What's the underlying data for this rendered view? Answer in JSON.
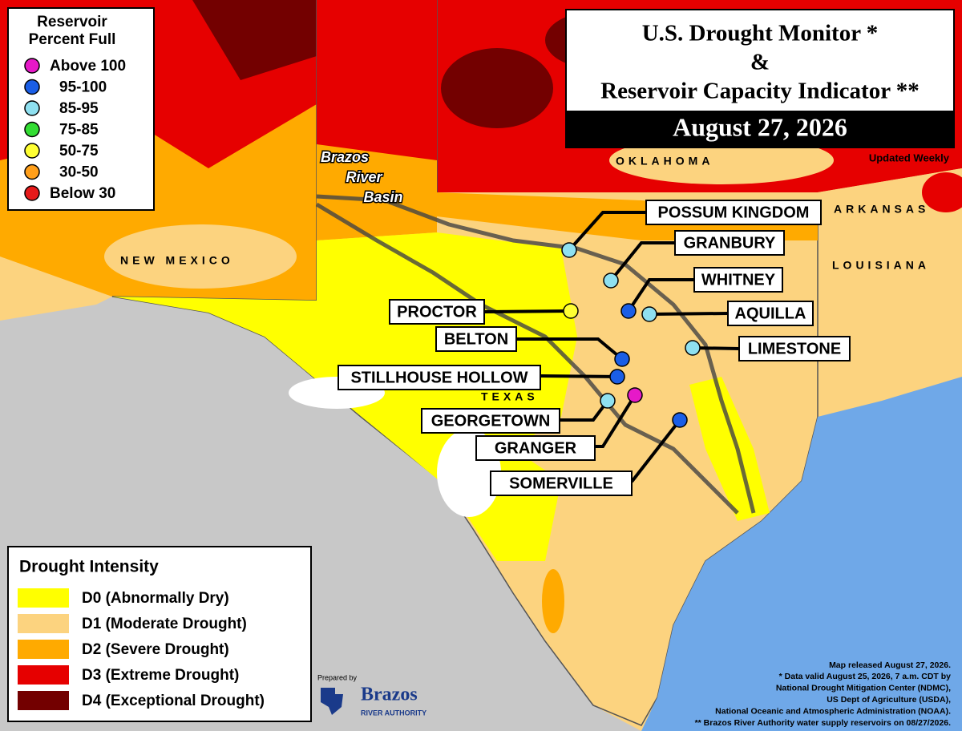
{
  "title": {
    "line1": "U.S. Drought Monitor *",
    "line2": "&",
    "line3": "Reservoir Capacity Indicator **",
    "date": "August 27, 2026"
  },
  "updated": "Updated Weekly",
  "reservoir_legend": {
    "title_lines": [
      "Reservoir",
      "Percent Full"
    ],
    "items": [
      {
        "label": "Above 100",
        "color": "#e619c8"
      },
      {
        "label": "95-100",
        "color": "#1a5ee6"
      },
      {
        "label": "85-95",
        "color": "#8fe0f0"
      },
      {
        "label": "75-85",
        "color": "#33dd33"
      },
      {
        "label": "50-75",
        "color": "#ffff33"
      },
      {
        "label": "30-50",
        "color": "#ff9f1a"
      },
      {
        "label": "Below 30",
        "color": "#e61a1a"
      }
    ]
  },
  "drought_legend": {
    "title": "Drought Intensity",
    "items": [
      {
        "label": "D0 (Abnormally Dry)",
        "color": "#ffff00"
      },
      {
        "label": "D1 (Moderate Drought)",
        "color": "#fcd37f"
      },
      {
        "label": "D2 (Severe Drought)",
        "color": "#ffaa00"
      },
      {
        "label": "D3 (Extreme Drought)",
        "color": "#e60000"
      },
      {
        "label": "D4 (Exceptional Drought)",
        "color": "#730000"
      }
    ]
  },
  "map_labels": {
    "new_mexico": "NEW MEXICO",
    "oklahoma": "OKLAHOMA",
    "arkansas": "ARKANSAS",
    "louisiana": "LOUISIANA",
    "texas": "TEXAS",
    "basin": [
      "Brazos",
      "River",
      "Basin"
    ]
  },
  "reservoirs": [
    {
      "name": "POSSUM KINGDOM",
      "color": "#8fe0f0"
    },
    {
      "name": "GRANBURY",
      "color": "#8fe0f0"
    },
    {
      "name": "WHITNEY",
      "color": "#1a5ee6"
    },
    {
      "name": "AQUILLA",
      "color": "#8fe0f0"
    },
    {
      "name": "LIMESTONE",
      "color": "#8fe0f0"
    },
    {
      "name": "PROCTOR",
      "color": "#ffff33"
    },
    {
      "name": "BELTON",
      "color": "#1a5ee6"
    },
    {
      "name": "STILLHOUSE HOLLOW",
      "color": "#1a5ee6"
    },
    {
      "name": "GEORGETOWN",
      "color": "#8fe0f0"
    },
    {
      "name": "GRANGER",
      "color": "#e619c8"
    },
    {
      "name": "SOMERVILLE",
      "color": "#1a5ee6"
    }
  ],
  "footer": {
    "notes": [
      "Map released August 27, 2026.",
      "* Data valid August 25, 2026, 7 a.m. CDT by",
      "National Drought Mitigation Center (NDMC),",
      "US Dept of Agriculture (USDA),",
      "National Oceanic and Atmospheric Administration (NOAA).",
      "** Brazos River Authority water supply reservoirs on 08/27/2026."
    ],
    "prepared_by": "Prepared by",
    "logo_name": "Brazos",
    "logo_sub": "RIVER AUTHORITY"
  }
}
